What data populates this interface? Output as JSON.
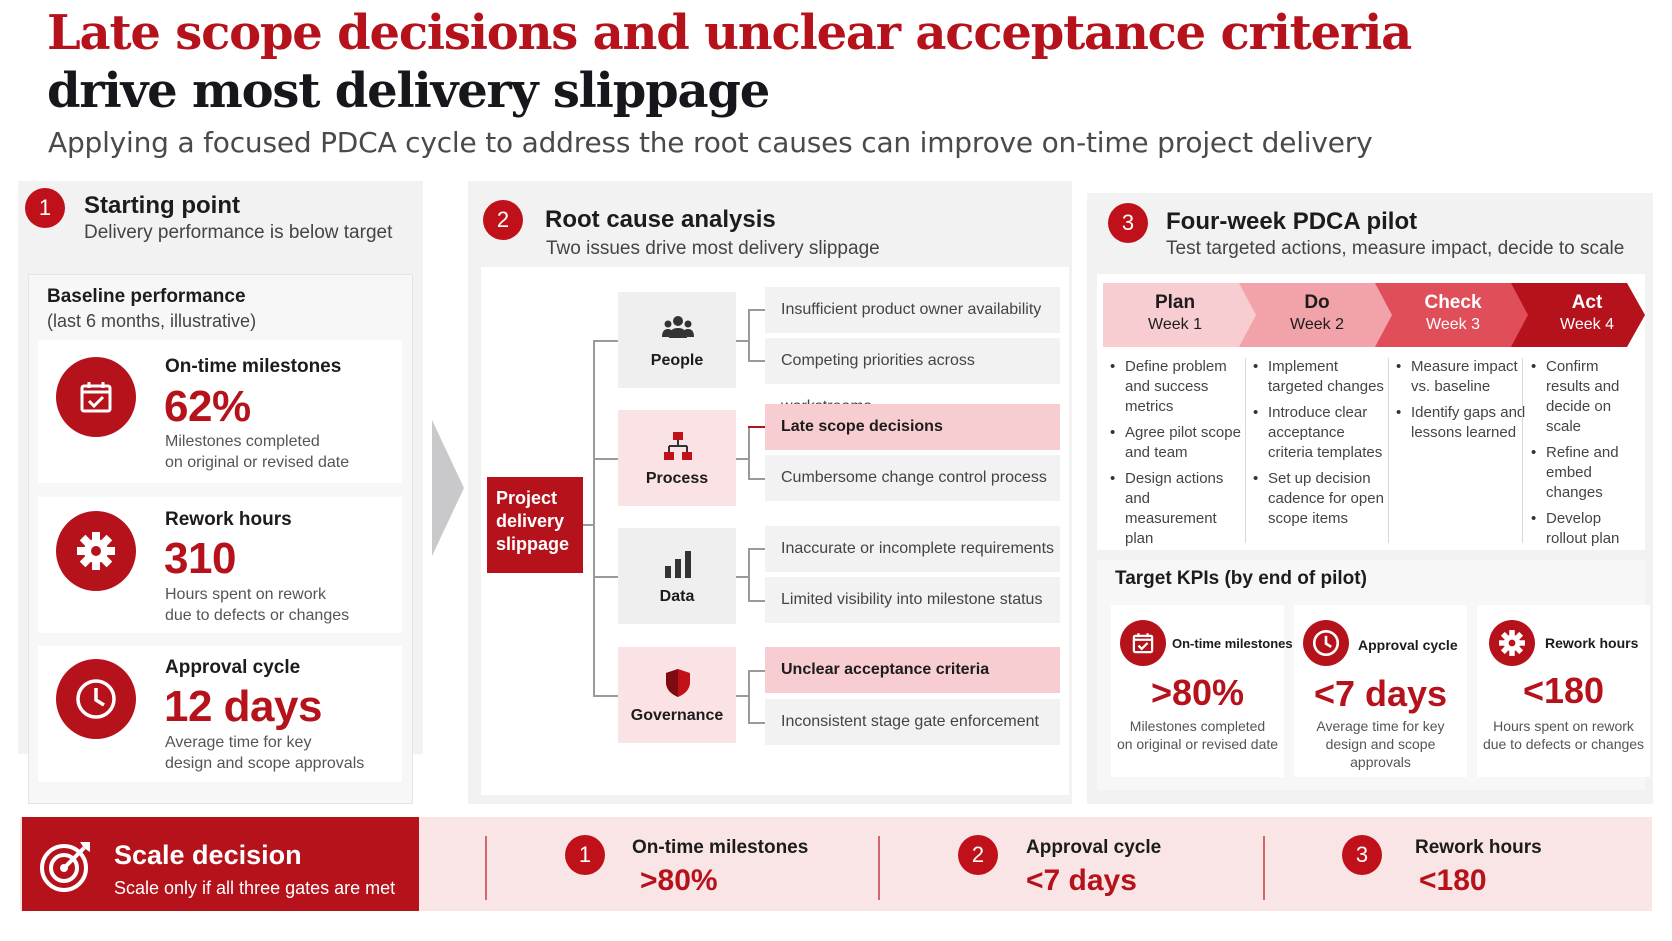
{
  "title": {
    "line1_red": "Late scope decisions",
    "line1_dark": " and unclear acceptance criteria",
    "line2": "drive most delivery slippage"
  },
  "subtitle": "Applying a focused PDCA cycle to address the root causes can improve on-time project delivery",
  "colors": {
    "accent": "#b5121b",
    "highlight": "#f8cdd1",
    "panel": "#f2f2f3"
  },
  "starting_point": {
    "number": "1",
    "heading": "Starting point",
    "subheading": "Delivery performance is below target",
    "baseline_title": "Baseline performance",
    "baseline_sub": "(last 6 months, illustrative)",
    "metrics": [
      {
        "icon": "calendar-check-icon",
        "label": "On-time milestones",
        "value": "62%",
        "desc1": "Milestones completed",
        "desc2": "on original or revised date"
      },
      {
        "icon": "gear-icon",
        "label": "Rework hours",
        "value": "310",
        "desc1": "Hours spent on rework",
        "desc2": "due to defects or changes"
      },
      {
        "icon": "clock-icon",
        "label": "Approval cycle",
        "value": "12 days",
        "desc1": "Average time for key",
        "desc2": "design and scope approvals"
      }
    ]
  },
  "root_cause": {
    "number": "2",
    "heading": "Root cause analysis",
    "subheading": "Two issues drive most delivery slippage",
    "effect": "Project delivery slippage",
    "categories": [
      {
        "label": "People",
        "icon": "people-icon",
        "causes": [
          "Insufficient product owner availability",
          "Competing priorities across workstreams"
        ]
      },
      {
        "label": "Process",
        "icon": "flowchart-icon",
        "causes": [
          "Late scope decisions",
          "Cumbersome change control process"
        ]
      },
      {
        "label": "Data",
        "icon": "bar-chart-icon",
        "causes": [
          "Inaccurate or incomplete requirements",
          "Limited visibility into milestone status"
        ]
      },
      {
        "label": "Governance",
        "icon": "shield-icon",
        "causes": [
          "Unclear acceptance criteria",
          "Inconsistent stage gate enforcement"
        ]
      }
    ]
  },
  "pdca": {
    "number": "3",
    "heading": "Four-week PDCA pilot",
    "subheading": "Test targeted actions, measure impact, decide to scale",
    "steps": [
      {
        "name": "Plan",
        "week": "Week 1",
        "bullets": [
          "Define problem and success metrics",
          "Agree pilot scope and team",
          "Design actions and measurement plan"
        ]
      },
      {
        "name": "Do",
        "week": "Week 2",
        "bullets": [
          "Implement targeted changes",
          "Introduce clear acceptance criteria templates",
          "Set up decision cadence for open scope items"
        ]
      },
      {
        "name": "Check",
        "week": "Week 3",
        "bullets": [
          "Measure impact vs. baseline",
          "Identify gaps and lessons learned"
        ]
      },
      {
        "name": "Act",
        "week": "Week 4",
        "bullets": [
          "Confirm results and decide on scale",
          "Refine and embed changes",
          "Develop rollout plan"
        ]
      }
    ],
    "kpi_title": "Target KPIs (by end of pilot)",
    "kpis": [
      {
        "icon": "calendar-check-icon",
        "label": "On-time milestones",
        "value": ">80%",
        "desc1": "Milestones completed",
        "desc2": "on original or revised date"
      },
      {
        "icon": "clock-icon",
        "label": "Approval cycle",
        "value": "<7 days",
        "desc1": "Average time for key",
        "desc2": "design and scope approvals"
      },
      {
        "icon": "gear-icon",
        "label": "Rework hours",
        "value": "<180",
        "desc1": "Hours spent on rework",
        "desc2": "due to defects or changes"
      }
    ]
  },
  "scale_decision": {
    "heading": "Scale decision",
    "subheading": "Scale only if all three gates are met",
    "gates": [
      {
        "number": "1",
        "label": "On-time milestones",
        "value": ">80%"
      },
      {
        "number": "2",
        "label": "Approval cycle",
        "value": "<7 days"
      },
      {
        "number": "3",
        "label": "Rework hours",
        "value": "<180"
      }
    ]
  }
}
